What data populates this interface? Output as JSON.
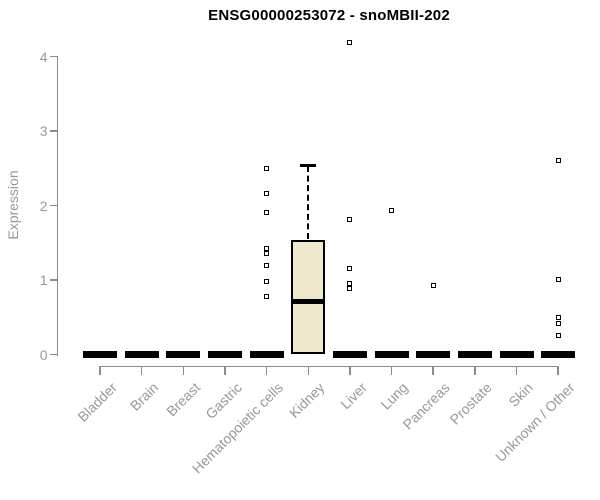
{
  "window": {
    "background_color": "#ffffff"
  },
  "chart_data": {
    "type": "boxplot",
    "title": "ENSG00000253072 - snoMBII-202",
    "xlabel": "",
    "ylabel": "Expression",
    "ylim": [
      0,
      4
    ],
    "yticks": [
      0,
      1,
      2,
      3,
      4
    ],
    "grid": false,
    "legend": null,
    "colors": {
      "box_fill": "#EEE8CD",
      "box_border": "#000000",
      "median": "#000000",
      "outlier_border": "#000000",
      "axis": "#8c8c8c",
      "tick_text": "#989898",
      "title_text": "#000000"
    },
    "categories": [
      "Bladder",
      "Brain",
      "Breast",
      "Gastric",
      "Hematopoietic cells",
      "Kidney",
      "Liver",
      "Lung",
      "Pancreas",
      "Prostate",
      "Skin",
      "Unknown / Other"
    ],
    "boxes": [
      {
        "category": "Bladder",
        "whisker_low": 0,
        "q1": 0,
        "median": 0,
        "q3": 0,
        "whisker_high": 0,
        "outliers": []
      },
      {
        "category": "Brain",
        "whisker_low": 0,
        "q1": 0,
        "median": 0,
        "q3": 0,
        "whisker_high": 0,
        "outliers": []
      },
      {
        "category": "Breast",
        "whisker_low": 0,
        "q1": 0,
        "median": 0,
        "q3": 0,
        "whisker_high": 0,
        "outliers": []
      },
      {
        "category": "Gastric",
        "whisker_low": 0,
        "q1": 0,
        "median": 0,
        "q3": 0,
        "whisker_high": 0,
        "outliers": []
      },
      {
        "category": "Hematopoietic cells",
        "whisker_low": 0,
        "q1": 0,
        "median": 0,
        "q3": 0,
        "whisker_high": 0,
        "outliers": [
          2.49,
          2.16,
          1.91,
          1.42,
          1.36,
          1.2,
          0.98,
          0.78
        ]
      },
      {
        "category": "Kidney",
        "whisker_low": 0,
        "q1": 0,
        "median": 0.71,
        "q3": 1.54,
        "whisker_high": 2.54,
        "outliers": []
      },
      {
        "category": "Liver",
        "whisker_low": 0,
        "q1": 0,
        "median": 0,
        "q3": 0,
        "whisker_high": 0,
        "outliers": [
          4.19,
          1.81,
          1.16,
          0.95,
          0.88
        ]
      },
      {
        "category": "Lung",
        "whisker_low": 0,
        "q1": 0,
        "median": 0,
        "q3": 0,
        "whisker_high": 0,
        "outliers": [
          1.93
        ]
      },
      {
        "category": "Pancreas",
        "whisker_low": 0,
        "q1": 0,
        "median": 0,
        "q3": 0,
        "whisker_high": 0,
        "outliers": [
          0.92
        ]
      },
      {
        "category": "Prostate",
        "whisker_low": 0,
        "q1": 0,
        "median": 0,
        "q3": 0,
        "whisker_high": 0,
        "outliers": []
      },
      {
        "category": "Skin",
        "whisker_low": 0,
        "q1": 0,
        "median": 0,
        "q3": 0,
        "whisker_high": 0,
        "outliers": []
      },
      {
        "category": "Unknown / Other",
        "whisker_low": 0,
        "q1": 0,
        "median": 0,
        "q3": 0,
        "whisker_high": 0,
        "outliers": [
          2.61,
          1.01,
          0.5,
          0.42,
          0.26
        ]
      }
    ]
  }
}
